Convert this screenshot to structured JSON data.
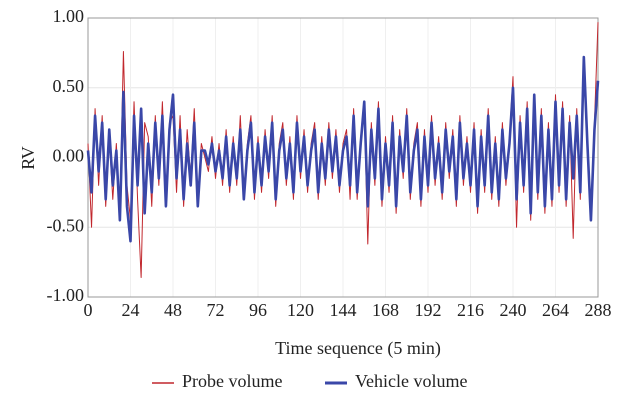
{
  "chart_data": {
    "type": "line",
    "xlabel": "Time sequence (5 min)",
    "ylabel": "RV",
    "x": [
      0,
      2,
      4,
      6,
      8,
      10,
      12,
      14,
      16,
      18,
      20,
      22,
      24,
      26,
      28,
      30,
      32,
      34,
      36,
      38,
      40,
      42,
      44,
      46,
      48,
      50,
      52,
      54,
      56,
      58,
      60,
      62,
      64,
      66,
      68,
      70,
      72,
      74,
      76,
      78,
      80,
      82,
      84,
      86,
      88,
      90,
      92,
      94,
      96,
      98,
      100,
      102,
      104,
      106,
      108,
      110,
      112,
      114,
      116,
      118,
      120,
      122,
      124,
      126,
      128,
      130,
      132,
      134,
      136,
      138,
      140,
      142,
      144,
      146,
      148,
      150,
      152,
      154,
      156,
      158,
      160,
      162,
      164,
      166,
      168,
      170,
      172,
      174,
      176,
      178,
      180,
      182,
      184,
      186,
      188,
      190,
      192,
      194,
      196,
      198,
      200,
      202,
      204,
      206,
      208,
      210,
      212,
      214,
      216,
      218,
      220,
      222,
      224,
      226,
      228,
      230,
      232,
      234,
      236,
      238,
      240,
      242,
      244,
      246,
      248,
      250,
      252,
      254,
      256,
      258,
      260,
      262,
      264,
      266,
      268,
      270,
      272,
      274,
      276,
      278,
      280,
      282,
      284,
      286,
      288
    ],
    "series": [
      {
        "name": "Probe volume",
        "color": "#c1272d",
        "width": 1,
        "values": [
          0.1,
          -0.5,
          0.35,
          -0.2,
          0.3,
          -0.35,
          0.15,
          -0.3,
          0.1,
          -0.4,
          0.76,
          -0.2,
          -0.45,
          0.4,
          -0.3,
          -0.86,
          0.25,
          0.15,
          -0.35,
          0.3,
          -0.2,
          0.4,
          -0.3,
          0.25,
          0.3,
          -0.25,
          0.3,
          -0.35,
          0.2,
          -0.15,
          0.35,
          -0.3,
          0.1,
          0.0,
          -0.1,
          0.15,
          -0.15,
          0.1,
          -0.2,
          0.2,
          -0.25,
          0.15,
          -0.2,
          0.3,
          -0.25,
          0.1,
          0.3,
          -0.3,
          0.15,
          -0.25,
          0.2,
          -0.15,
          0.3,
          -0.35,
          0.1,
          0.25,
          -0.2,
          0.15,
          -0.3,
          0.3,
          -0.15,
          0.2,
          -0.25,
          0.1,
          0.25,
          -0.3,
          0.15,
          -0.2,
          0.25,
          -0.15,
          0.2,
          -0.25,
          0.1,
          0.2,
          -0.3,
          0.35,
          -0.3,
          0.15,
          0.35,
          -0.62,
          0.25,
          -0.2,
          0.4,
          -0.35,
          0.15,
          -0.25,
          0.3,
          -0.4,
          0.2,
          -0.15,
          0.35,
          -0.3,
          0.1,
          0.25,
          -0.35,
          0.2,
          -0.25,
          0.3,
          -0.2,
          0.15,
          -0.3,
          0.25,
          -0.15,
          0.2,
          -0.35,
          0.3,
          -0.2,
          0.15,
          -0.25,
          0.25,
          -0.4,
          0.2,
          -0.25,
          0.35,
          -0.3,
          0.15,
          -0.35,
          0.25,
          -0.2,
          0.15,
          0.58,
          -0.5,
          0.3,
          -0.25,
          0.4,
          -0.45,
          0.4,
          -0.3,
          0.35,
          -0.4,
          0.25,
          -0.35,
          0.45,
          -0.25,
          0.4,
          -0.35,
          0.3,
          -0.58,
          0.35,
          -0.3,
          0.6,
          0.15,
          -0.4,
          0.25,
          0.97
        ]
      },
      {
        "name": "Vehicle volume",
        "color": "#3a47a8",
        "width": 2.6,
        "values": [
          0.05,
          -0.25,
          0.3,
          -0.1,
          0.25,
          -0.3,
          0.2,
          -0.2,
          0.05,
          -0.45,
          0.47,
          -0.35,
          -0.6,
          0.3,
          -0.2,
          0.35,
          -0.4,
          0.1,
          -0.25,
          0.25,
          -0.15,
          0.3,
          -0.35,
          0.2,
          0.45,
          -0.15,
          0.2,
          -0.3,
          0.1,
          -0.2,
          0.25,
          -0.35,
          0.05,
          0.05,
          -0.05,
          0.1,
          -0.1,
          0.05,
          -0.15,
          0.15,
          -0.2,
          0.1,
          -0.15,
          0.2,
          -0.3,
          0.05,
          0.25,
          -0.25,
          0.1,
          -0.2,
          0.15,
          -0.1,
          0.25,
          -0.3,
          0.05,
          0.2,
          -0.15,
          0.1,
          -0.25,
          0.25,
          -0.1,
          0.15,
          -0.2,
          0.05,
          0.2,
          -0.25,
          0.1,
          -0.15,
          0.2,
          -0.1,
          0.15,
          -0.2,
          0.05,
          0.15,
          -0.2,
          0.3,
          -0.25,
          0.1,
          0.4,
          -0.35,
          0.2,
          -0.15,
          0.35,
          -0.3,
          0.1,
          -0.2,
          0.25,
          -0.35,
          0.15,
          -0.1,
          0.3,
          -0.25,
          0.05,
          0.2,
          -0.3,
          0.15,
          -0.2,
          0.25,
          -0.15,
          0.1,
          -0.25,
          0.2,
          -0.1,
          0.15,
          -0.3,
          0.25,
          -0.15,
          0.1,
          -0.2,
          0.2,
          -0.35,
          0.15,
          -0.2,
          0.3,
          -0.25,
          0.1,
          -0.3,
          0.2,
          -0.15,
          0.1,
          0.5,
          -0.3,
          0.25,
          -0.2,
          0.35,
          -0.4,
          0.45,
          -0.25,
          0.3,
          -0.35,
          0.2,
          -0.3,
          0.4,
          -0.2,
          0.35,
          -0.3,
          0.25,
          -0.15,
          0.3,
          -0.25,
          0.72,
          0.1,
          -0.45,
          0.2,
          0.55
        ]
      }
    ],
    "xlim": [
      0,
      288
    ],
    "xticks": [
      0,
      24,
      48,
      72,
      96,
      120,
      144,
      168,
      192,
      216,
      240,
      264,
      288
    ],
    "ylim": [
      -1,
      1
    ],
    "yticks": [
      {
        "value": -1,
        "label": "-1.00"
      },
      {
        "value": -0.5,
        "label": "-0.50"
      },
      {
        "value": 0,
        "label": "0.00"
      },
      {
        "value": 0.5,
        "label": "0.50"
      },
      {
        "value": 1,
        "label": "1.00"
      }
    ],
    "grid": true,
    "legend": "bottom"
  }
}
